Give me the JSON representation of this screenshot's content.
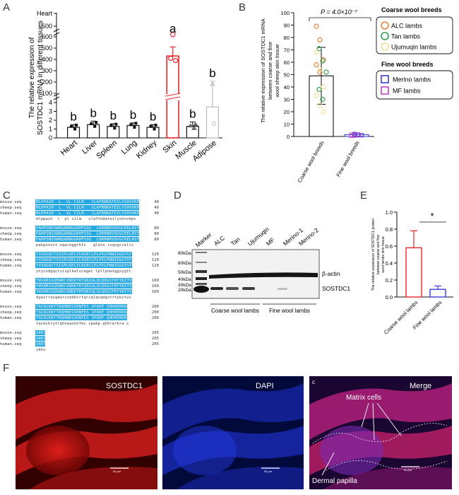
{
  "colors": {
    "red": "#e8262a",
    "black": "#111111",
    "orange": "#e8823a",
    "green": "#31a24c",
    "cream": "#f0dd98",
    "blue": "#3d3fd6",
    "magenta": "#c640c6",
    "seq_highlight": "#29a9e1",
    "dapi_blue": "#1e2fc8",
    "stain_red": "#d81a1a"
  },
  "panels": {
    "A": {
      "letter": "A"
    },
    "B": {
      "letter": "B"
    },
    "C": {
      "letter": "C"
    },
    "D": {
      "letter": "D"
    },
    "E": {
      "letter": "E"
    },
    "F": {
      "letter": "F"
    }
  },
  "chart_data": [
    {
      "panel": "A",
      "type": "bar",
      "ylabel_line1": "The relative expression of",
      "ylabel_line2": "SOSTDC1 mRNA in different tissues",
      "categories": [
        "Heart",
        "Liver",
        "Spleen",
        "Lung",
        "Kidney",
        "Skin",
        "Muscle",
        "Adipose"
      ],
      "values": [
        1.2,
        1.5,
        1.3,
        1.4,
        1.2,
        430,
        1.3,
        3.5
      ],
      "errors": [
        0.3,
        0.4,
        0.3,
        0.3,
        0.3,
        80,
        0.5,
        3.2
      ],
      "significance": [
        "b",
        "b",
        "b",
        "b",
        "b",
        "a",
        "b",
        "b"
      ],
      "highlight_category": "Skin",
      "yticks_lower": [
        "0",
        "1",
        "2",
        "3",
        "4"
      ],
      "yticks_mid": [
        "100",
        "200",
        "300",
        "400",
        "500",
        "600"
      ],
      "yticks_upper": [
        "Heart",
        "500",
        "600"
      ],
      "axis_break": true
    },
    {
      "panel": "B",
      "type": "scatter",
      "ylabel_line1": "The relative expression of SOSTDC1 mRNA",
      "ylabel_line2": "between coarse and fine",
      "ylabel_line3": "wool sheep skin tissue",
      "categories": [
        "Coarse wool breeds",
        "Fine wool breeds"
      ],
      "means": [
        49,
        1.5
      ],
      "errors": [
        23,
        1.2
      ],
      "ylim": [
        0,
        100
      ],
      "yticks": [
        "0",
        "10",
        "20",
        "30",
        "40",
        "50",
        "60",
        "70",
        "80",
        "90",
        "100"
      ],
      "pvalue": "P = 4.0×10⁻⁷",
      "points": {
        "ALC lambs": [
          89,
          78,
          62,
          58,
          52
        ],
        "Tan lambs": [
          71,
          61,
          52,
          38,
          30
        ],
        "Ujumuqin lambs": [
          68,
          54,
          40,
          33,
          25,
          20
        ],
        "Merino lambs": [
          2,
          1.5,
          1,
          0.8
        ],
        "MF lambs": [
          1.5,
          1.2,
          1,
          0.6
        ]
      }
    },
    {
      "panel": "E",
      "type": "bar",
      "ylabel_line1": "The relative expression of SOSTDC1 protein",
      "ylabel_line2": "between coarse and fine",
      "ylabel_line3": "wool lambs skin tissue",
      "categories": [
        "Coarse wool lambs",
        "Fine wool lambs"
      ],
      "values": [
        0.58,
        0.09
      ],
      "errors": [
        0.2,
        0.04
      ],
      "ylim": [
        0,
        1.0
      ],
      "yticks": [
        "0.0",
        "0.2",
        "0.4",
        "0.6",
        "0.8",
        "1.0"
      ],
      "significance": "*"
    }
  ],
  "legend_b": {
    "coarse_title": "Coarse wool breeds",
    "coarse_items": [
      "ALC lambs",
      "Tan lambs",
      "Ujumuqin lambs"
    ],
    "fine_title": "Fine wool breeds",
    "fine_items": [
      "Merino lambs",
      "MF lambs"
    ]
  },
  "alignment": {
    "blocks": [
      {
        "rows": [
          {
            "name": "mouse.seq",
            "text": "MLPPAIH  L  VL CILM   CLAFRNDATEILYSHVVKPV",
            "num": "40"
          },
          {
            "name": "sheep.seq",
            "text": "MLPPAIH  L  VL CILM   CLAFRNDATEILYSHVVKPV",
            "num": "40"
          },
          {
            "name": "human.seq",
            "text": "MLPPAIH  L  VL CILM   CLAFRNDATEILYSHVVKPV",
            "num": "40"
          },
          {
            "name": "",
            "text": "mlppaih  l  pl cilm   claftndateilyshvvkpv",
            "num": "",
            "cons": true
          }
        ]
      },
      {
        "rows": [
          {
            "name": "mouse.seq",
            "text": "PAHPSNSSWNQARNGGRHFSSG  LDRRNRVQVGCRELRSTK",
            "num": "80"
          },
          {
            "name": "sheep.seq",
            "text": "PAHPSNSSWNQARNGGRHFSSG  LDRRNRVQVGCRELRSTK",
            "num": "80"
          },
          {
            "name": "human.seq",
            "text": "PAHPSNSSWNQARNGGRHFSSG  LDRRNRVQVGCRELRSTK",
            "num": "80"
          },
          {
            "name": "",
            "text": "pahpsnsst nqarnggrhfs   gldrn rvqvgcrelrs",
            "num": "",
            "cons": true
          }
        ]
      },
      {
        "rows": [
          {
            "name": "mouse.seq",
            "text": "YISDGQCTSISPLKELVCAGECLPLPVLPNWIGGGYGTK",
            "num": "120"
          },
          {
            "name": "sheep.seq",
            "text": "YISDGQCTSISPLKELVCAGECLPLPVLPNWIGGGYGTK",
            "num": "120"
          },
          {
            "name": "human.seq",
            "text": "YISDGQCTSISPLKELVCAGECLPLPVLPNWIGGGYGTK",
            "num": "120"
          },
          {
            "name": "",
            "text": "ytyisdgqctsisplkelvcagec lpllpnwiggsygtt",
            "num": "",
            "cons": true
          }
        ]
      },
      {
        "rows": [
          {
            "name": "mouse.seq",
            "text": "YWSRRSSQEWRCVNDKTRTQRIQLQCQDGSTRTYKITVV",
            "num": "160"
          },
          {
            "name": "sheep.seq",
            "text": "YWSRRSSQEWRCVNDKTRTQRIQLQCQDGSTRTYKITVV",
            "num": "160"
          },
          {
            "name": "human.seq",
            "text": "YWSRRSSQEWRCVNDKTRTQRIQLQCQDGSTRTYKITVV",
            "num": "160"
          },
          {
            "name": "",
            "text": "dywsrrasqewrcvndktrtqriqlqcqdgstrtykitvv",
            "num": "",
            "cons": true
          }
        ]
      },
      {
        "rows": [
          {
            "name": "mouse.seq",
            "text": "TACKCKRYTRQHNESSHNFES SPAKP QHHRERKRA",
            "num": "200"
          },
          {
            "name": "sheep.seq",
            "text": "TACKCKRYTRQHNESSHNFES SPAKP QHHRERKRA",
            "num": "200"
          },
          {
            "name": "human.seq",
            "text": "TACKCKRYTRQHNESSHNFES SPAKP QHHRERKRA",
            "num": "200"
          },
          {
            "name": "",
            "text": "tackckrytrqhneashnfes spakp ghhrerkra s",
            "num": "",
            "cons": true
          }
        ]
      },
      {
        "rows": [
          {
            "name": "mouse.seq",
            "text": "SKKS",
            "num": "205"
          },
          {
            "name": "sheep.seq",
            "text": "SKKS",
            "num": "205"
          },
          {
            "name": "human.seq",
            "text": "SKKS",
            "num": "205"
          },
          {
            "name": "",
            "text": "skks",
            "num": "",
            "cons": true
          }
        ]
      }
    ]
  },
  "western": {
    "marker_label": "Marker",
    "lane_labels": [
      "ALC",
      "Tan",
      "Ujumuqin",
      "MF",
      "Merino-1",
      "Merino-2"
    ],
    "kda_labels": [
      "80kDa",
      "60kDa",
      "50kDa",
      "40kDa",
      "30kDa",
      "20kDa"
    ],
    "beta_actin": "β-actin",
    "target": "SOSTDC1",
    "group_coarse": "Coarse wool lambs",
    "group_fine": "Fine wool lambs"
  },
  "micrographs": {
    "labels": [
      "SOSTDC1",
      "DAPI",
      "Merge"
    ],
    "matrix_cells": "Matrix cells",
    "dermal_papilla": "Dermal papilla",
    "corner_c": "c",
    "scale_text": [
      "50 μm",
      "50 μm",
      "50 μm"
    ]
  }
}
